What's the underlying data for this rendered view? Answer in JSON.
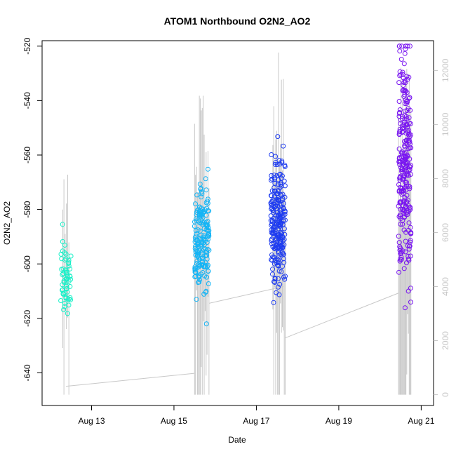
{
  "chart_data": {
    "type": "scatter",
    "title": "ATOM1 Northbound O2N2_AO2",
    "xlabel": "Date",
    "ylabel": "O2N2_AO2",
    "x_ticks": [
      "Aug 13",
      "Aug 15",
      "Aug 17",
      "Aug 19",
      "Aug 21"
    ],
    "x_tick_days": [
      13,
      15,
      17,
      19,
      21
    ],
    "xlim_days": [
      11.8,
      21.3
    ],
    "y_ticks": [
      -640,
      -620,
      -600,
      -580,
      -560,
      -540,
      -520
    ],
    "ylim": [
      -652,
      -518
    ],
    "y2_ticks": [
      0,
      2000,
      4000,
      6000,
      8000,
      10000,
      12000
    ],
    "y2lim": [
      -400,
      13100
    ],
    "colors": {
      "overlay_line": "#c8c8c8",
      "series": [
        "#19f0c8",
        "#14b4f5",
        "#1e3cf0",
        "#7814f0"
      ]
    },
    "series": [
      {
        "start_day": 12.25,
        "end_day": 12.5,
        "y_mean": -605,
        "y_sd": 6.5,
        "n": 60
      },
      {
        "start_day": 15.5,
        "end_day": 15.85,
        "y_mean": -591,
        "y_sd": 10,
        "n": 180
      },
      {
        "start_day": 17.35,
        "end_day": 17.7,
        "y_mean": -586,
        "y_sd": 12,
        "n": 240
      },
      {
        "start_day": 20.45,
        "end_day": 20.75,
        "y_mean": -564,
        "y_sd": 22,
        "n": 260
      }
    ],
    "overlay": {
      "axis": "right",
      "baseline_segments": [
        {
          "x": [
            12.38,
            15.5
          ],
          "y": [
            310,
            790
          ]
        },
        {
          "x": [
            15.85,
            17.65
          ],
          "y": [
            3380,
            4000
          ]
        },
        {
          "x": [
            17.7,
            20.45
          ],
          "y": [
            2100,
            3760
          ]
        }
      ],
      "spikes": [
        {
          "start_day": 12.3,
          "end_day": 12.45,
          "count": 6,
          "max": 8900
        },
        {
          "start_day": 15.5,
          "end_day": 15.85,
          "count": 16,
          "max": 11100
        },
        {
          "start_day": 17.4,
          "end_day": 17.7,
          "count": 14,
          "max": 12900
        },
        {
          "start_day": 20.45,
          "end_day": 20.75,
          "count": 16,
          "max": 12300
        }
      ]
    }
  }
}
